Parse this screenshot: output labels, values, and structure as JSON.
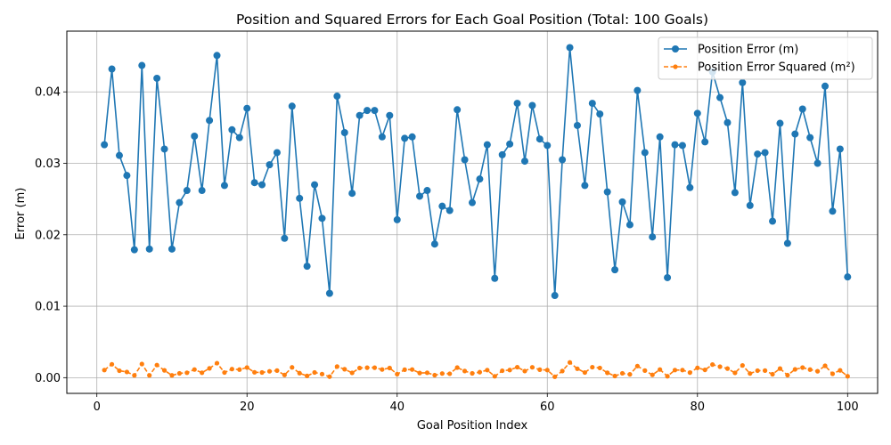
{
  "chart_data": {
    "type": "line",
    "title": "Position and Squared Errors for Each Goal Position (Total: 100 Goals)",
    "xlabel": "Goal Position Index",
    "ylabel": "Error (m)",
    "xlim": [
      -4,
      104
    ],
    "ylim": [
      -0.0022,
      0.0485
    ],
    "xticks": [
      0,
      20,
      40,
      60,
      80,
      100
    ],
    "yticks": [
      0.0,
      0.01,
      0.02,
      0.03,
      0.04
    ],
    "ytick_labels": [
      "0.00",
      "0.01",
      "0.02",
      "0.03",
      "0.04"
    ],
    "grid": true,
    "legend_position": "top-right",
    "x": [
      1,
      2,
      3,
      4,
      5,
      6,
      7,
      8,
      9,
      10,
      11,
      12,
      13,
      14,
      15,
      16,
      17,
      18,
      19,
      20,
      21,
      22,
      23,
      24,
      25,
      26,
      27,
      28,
      29,
      30,
      31,
      32,
      33,
      34,
      35,
      36,
      37,
      38,
      39,
      40,
      41,
      42,
      43,
      44,
      45,
      46,
      47,
      48,
      49,
      50,
      51,
      52,
      53,
      54,
      55,
      56,
      57,
      58,
      59,
      60,
      61,
      62,
      63,
      64,
      65,
      66,
      67,
      68,
      69,
      70,
      71,
      72,
      73,
      74,
      75,
      76,
      77,
      78,
      79,
      80,
      81,
      82,
      83,
      84,
      85,
      86,
      87,
      88,
      89,
      90,
      91,
      92,
      93,
      94,
      95,
      96,
      97,
      98,
      99,
      100
    ],
    "series": [
      {
        "name": "Position Error (m)",
        "color": "#1f77b4",
        "style": "solid",
        "marker": "circle",
        "values": [
          0.0326,
          0.0432,
          0.0311,
          0.0283,
          0.0179,
          0.0437,
          0.018,
          0.0419,
          0.032,
          0.018,
          0.0245,
          0.0262,
          0.0338,
          0.0262,
          0.036,
          0.0451,
          0.0269,
          0.0347,
          0.0336,
          0.0377,
          0.0273,
          0.027,
          0.0298,
          0.0315,
          0.0195,
          0.038,
          0.0251,
          0.0156,
          0.027,
          0.0223,
          0.0118,
          0.0394,
          0.0343,
          0.0258,
          0.0367,
          0.0374,
          0.0374,
          0.0337,
          0.0367,
          0.0221,
          0.0335,
          0.0337,
          0.0254,
          0.0262,
          0.0187,
          0.024,
          0.0234,
          0.0375,
          0.0305,
          0.0245,
          0.0278,
          0.0326,
          0.0139,
          0.0312,
          0.0327,
          0.0384,
          0.0303,
          0.0381,
          0.0334,
          0.0325,
          0.0115,
          0.0305,
          0.0462,
          0.0353,
          0.0269,
          0.0384,
          0.0369,
          0.026,
          0.0151,
          0.0246,
          0.0214,
          0.0402,
          0.0315,
          0.0197,
          0.0337,
          0.014,
          0.0326,
          0.0325,
          0.0266,
          0.037,
          0.033,
          0.0428,
          0.0392,
          0.0357,
          0.0259,
          0.0413,
          0.0241,
          0.0313,
          0.0315,
          0.0219,
          0.0356,
          0.0188,
          0.0341,
          0.0376,
          0.0336,
          0.03,
          0.0408,
          0.0233,
          0.032,
          0.0141
        ]
      },
      {
        "name": "Position Error Squared (m²)",
        "color": "#ff7f0e",
        "style": "dashed",
        "marker": "circle-small",
        "values": [
          0.00106,
          0.00187,
          0.00097,
          0.0008,
          0.00032,
          0.00191,
          0.00032,
          0.00176,
          0.00102,
          0.00032,
          0.0006,
          0.00069,
          0.00114,
          0.00069,
          0.0013,
          0.00203,
          0.00072,
          0.0012,
          0.00113,
          0.00142,
          0.00075,
          0.00073,
          0.00089,
          0.00099,
          0.00038,
          0.00144,
          0.00063,
          0.00024,
          0.00073,
          0.0005,
          0.00014,
          0.00155,
          0.00118,
          0.00067,
          0.00135,
          0.0014,
          0.0014,
          0.00114,
          0.00135,
          0.00049,
          0.00112,
          0.00114,
          0.00065,
          0.00069,
          0.00035,
          0.00058,
          0.00055,
          0.00141,
          0.00093,
          0.0006,
          0.00077,
          0.00106,
          0.00019,
          0.00097,
          0.00107,
          0.00147,
          0.00092,
          0.00145,
          0.00112,
          0.00106,
          0.00013,
          0.00093,
          0.00213,
          0.00125,
          0.00072,
          0.00147,
          0.00136,
          0.00068,
          0.00023,
          0.00061,
          0.00046,
          0.00162,
          0.00099,
          0.00039,
          0.00114,
          0.0002,
          0.00106,
          0.00106,
          0.00071,
          0.00137,
          0.00109,
          0.00183,
          0.00154,
          0.00127,
          0.00067,
          0.00171,
          0.00058,
          0.00098,
          0.00099,
          0.00048,
          0.00127,
          0.00035,
          0.00116,
          0.00141,
          0.00113,
          0.0009,
          0.00166,
          0.00054,
          0.00102,
          0.0002
        ]
      }
    ]
  }
}
